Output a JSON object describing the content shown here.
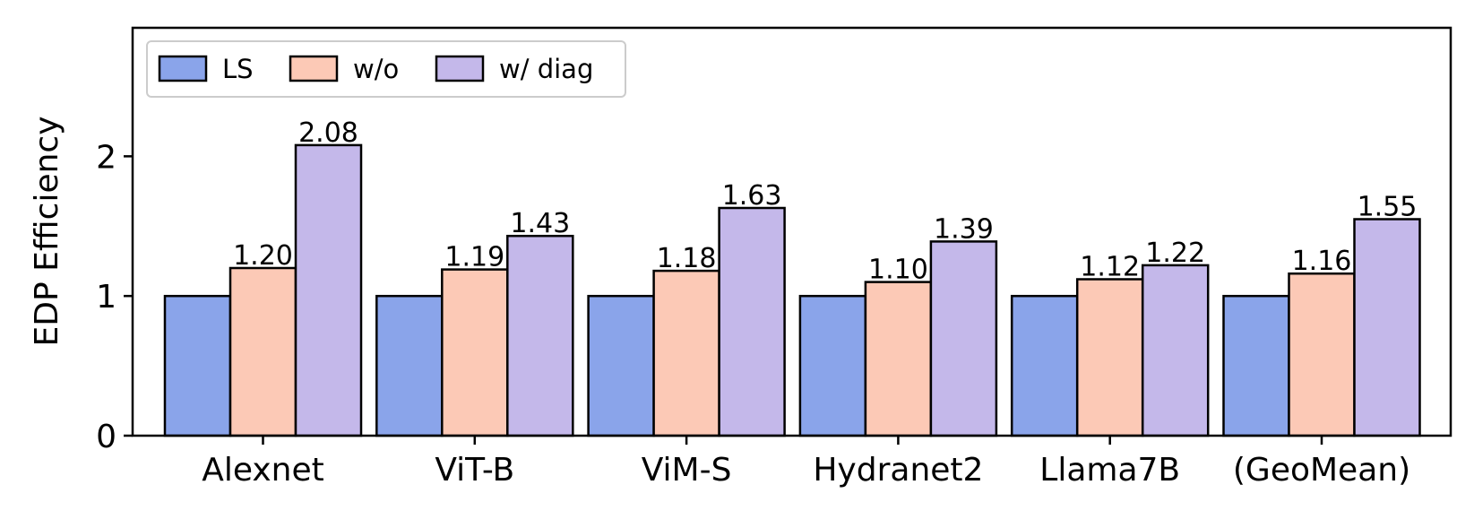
{
  "chart_data": {
    "type": "bar",
    "ylabel": "EDP Efficiency",
    "xlabel": "",
    "ylim": [
      0,
      2.92
    ],
    "yticks": [
      0,
      1,
      2
    ],
    "grid": false,
    "legend_position": "top-left",
    "categories": [
      "Alexnet",
      "ViT-B",
      "ViM-S",
      "Hydranet2",
      "Llama7B",
      "(GeoMean)"
    ],
    "series": [
      {
        "name": "LS",
        "color": "#8aa4ea",
        "values": [
          1.0,
          1.0,
          1.0,
          1.0,
          1.0,
          1.0
        ],
        "labels": []
      },
      {
        "name": "w/o",
        "color": "#fcc9b6",
        "values": [
          1.2,
          1.19,
          1.18,
          1.1,
          1.12,
          1.16
        ],
        "labels": [
          "1.20",
          "1.19",
          "1.18",
          "1.10",
          "1.12",
          "1.16"
        ]
      },
      {
        "name": "w/ diag",
        "color": "#c4b8ea",
        "values": [
          2.08,
          1.43,
          1.63,
          1.39,
          1.22,
          1.55
        ],
        "labels": [
          "2.08",
          "1.43",
          "1.63",
          "1.39",
          "1.22",
          "1.55"
        ]
      }
    ]
  }
}
